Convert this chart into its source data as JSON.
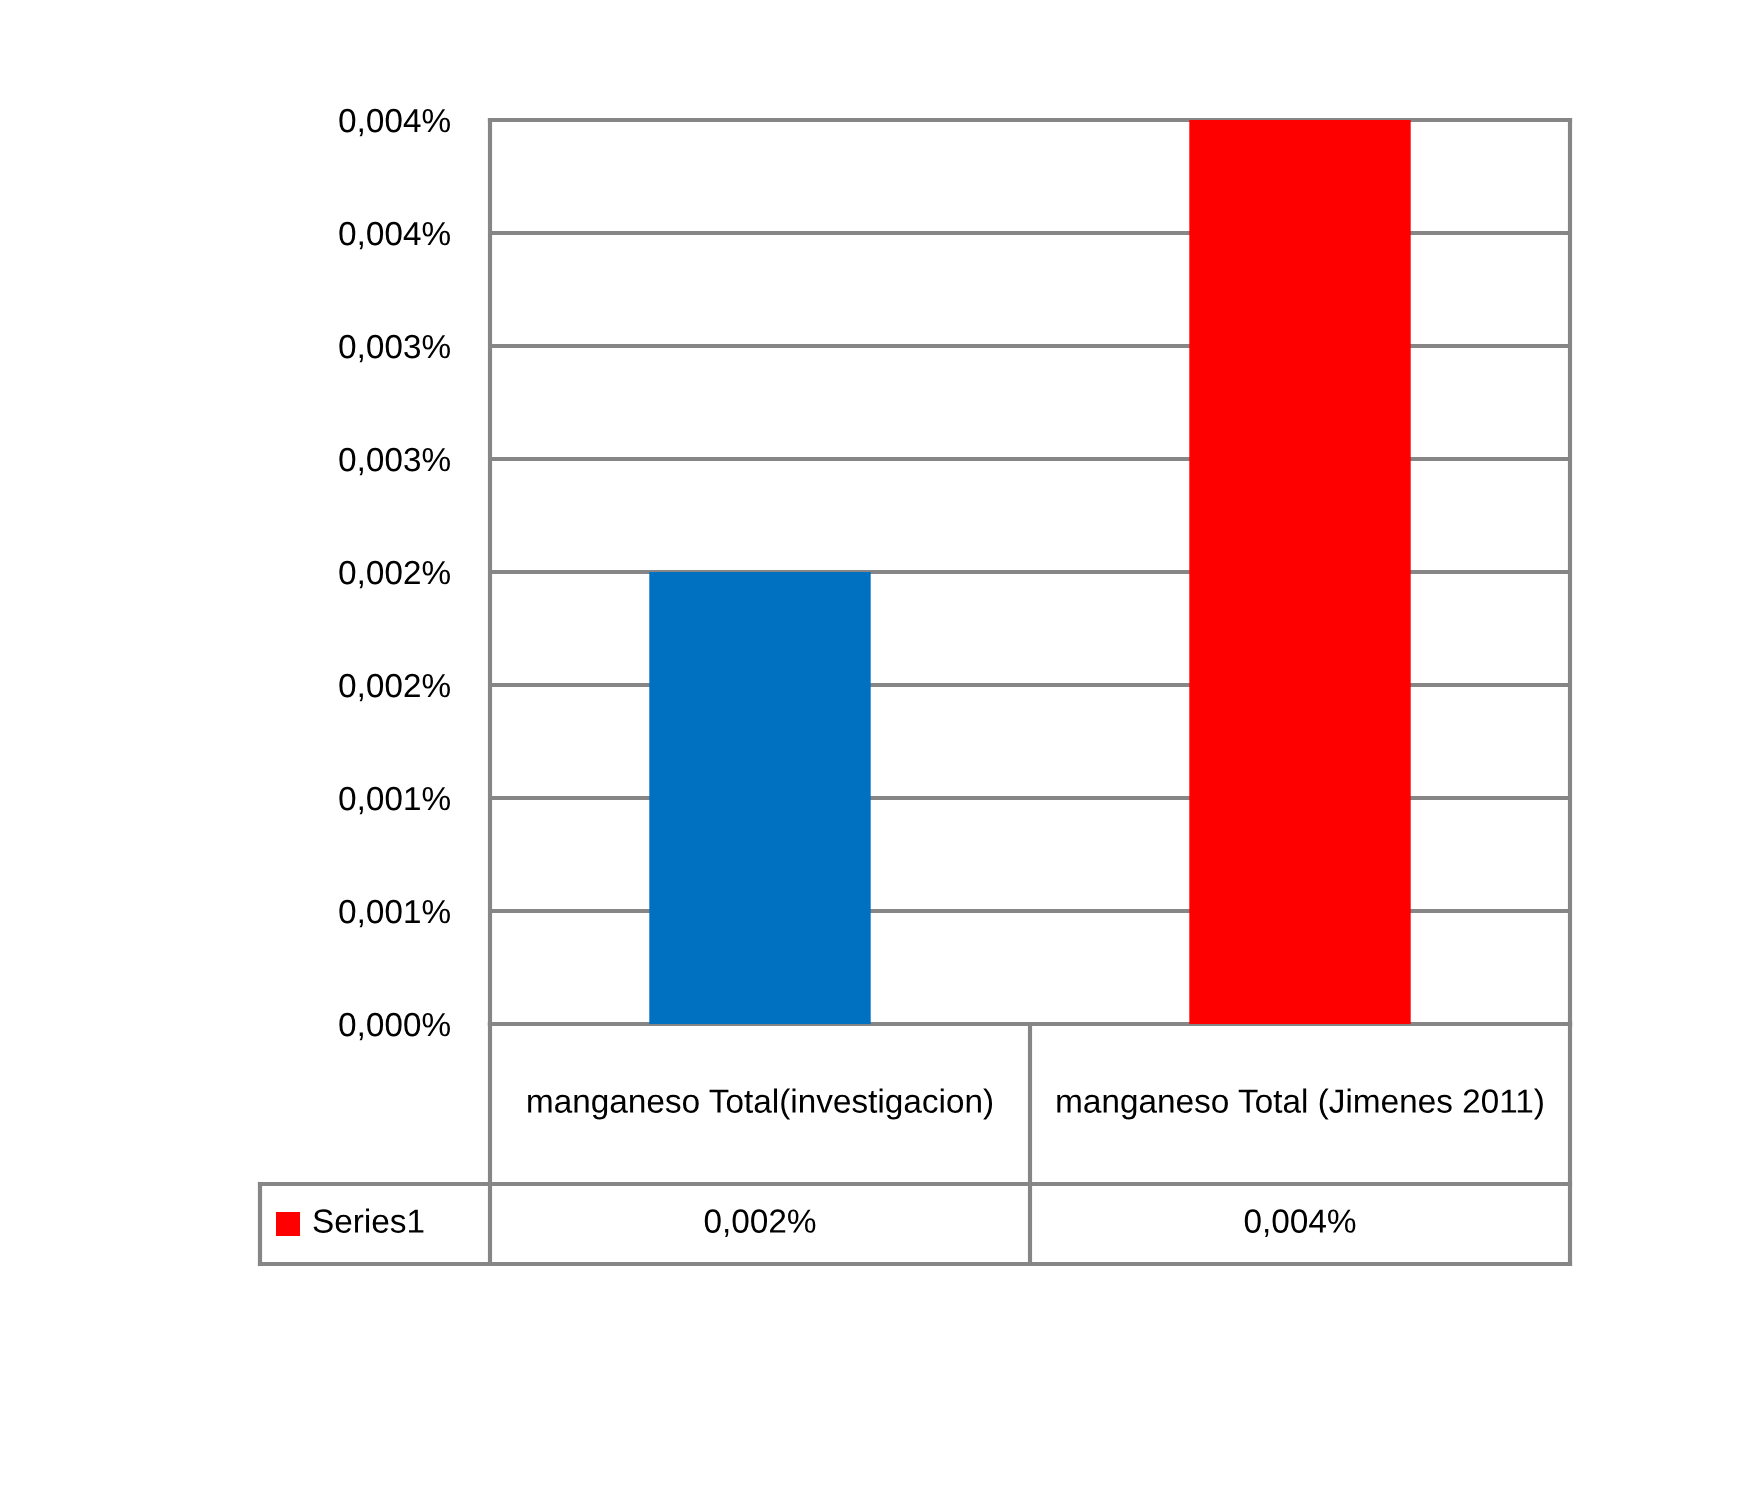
{
  "chart_data": {
    "type": "bar",
    "categories": [
      "manganeso Total(investigacion)",
      "manganeso Total (Jimenes 2011)"
    ],
    "series": [
      {
        "name": "Series1",
        "color": "#ff0000",
        "colors": [
          "#0070c0",
          "#ff0000"
        ],
        "values": [
          0.002,
          0.004
        ],
        "value_labels": [
          "0,002%",
          "0,004%"
        ]
      }
    ],
    "ylim": [
      0,
      0.004
    ],
    "yticks": [
      {
        "value": 0,
        "label": "0,000%"
      },
      {
        "value": 0.0005,
        "label": "0,001%"
      },
      {
        "value": 0.001,
        "label": "0,001%"
      },
      {
        "value": 0.0015,
        "label": "0,002%"
      },
      {
        "value": 0.002,
        "label": "0,002%"
      },
      {
        "value": 0.0025,
        "label": "0,003%"
      },
      {
        "value": 0.003,
        "label": "0,003%"
      },
      {
        "value": 0.0035,
        "label": "0,004%"
      },
      {
        "value": 0.004,
        "label": "0,004%"
      }
    ],
    "grid": "y",
    "legend": "bottom"
  }
}
